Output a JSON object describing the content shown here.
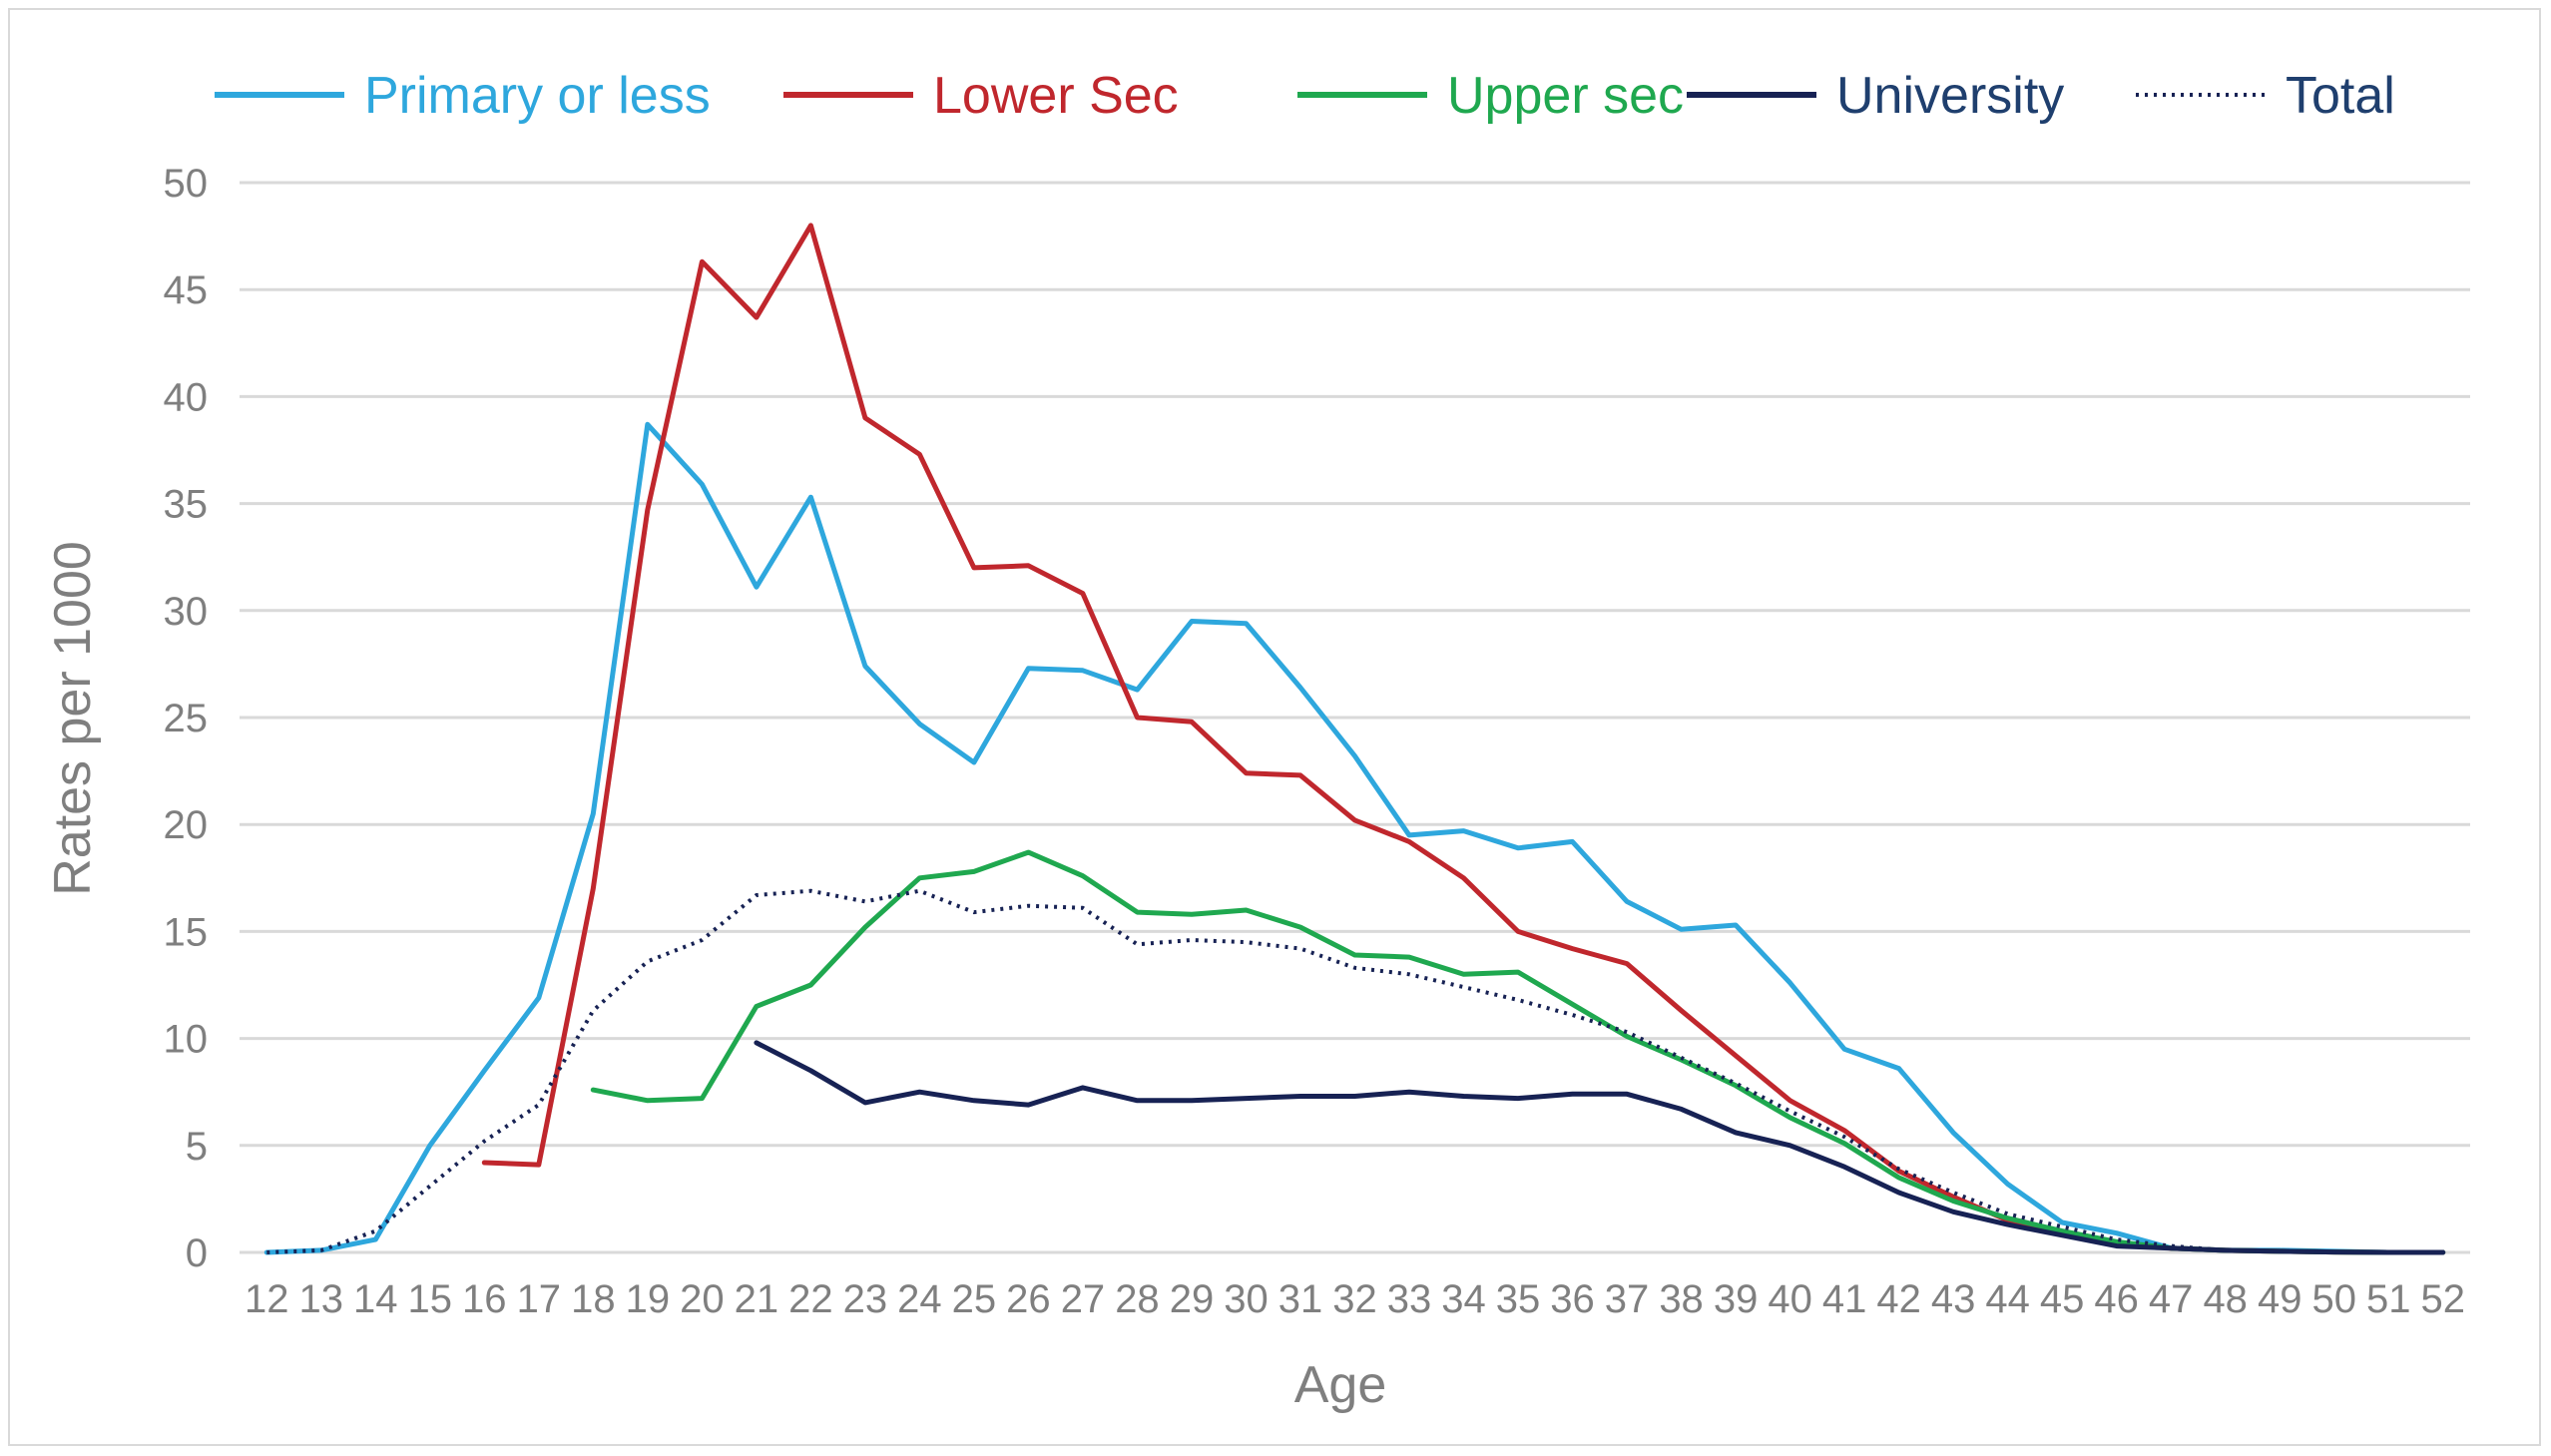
{
  "chart_data": {
    "type": "line",
    "title": "",
    "xlabel": "Age",
    "ylabel": "Rates per 1000",
    "ylim": [
      0,
      50
    ],
    "yticks": [
      0,
      5,
      10,
      15,
      20,
      25,
      30,
      35,
      40,
      45,
      50
    ],
    "grid": "horizontal",
    "legend_position": "top",
    "categories": [
      "12",
      "13",
      "14",
      "15",
      "16",
      "17",
      "18",
      "19",
      "20",
      "21",
      "22",
      "23",
      "24",
      "25",
      "26",
      "27",
      "28",
      "29",
      "30",
      "31",
      "32",
      "33",
      "34",
      "35",
      "36",
      "37",
      "38",
      "39",
      "40",
      "41",
      "42",
      "43",
      "44",
      "45",
      "46",
      "47",
      "48",
      "49",
      "50",
      "51",
      "52"
    ],
    "series": [
      {
        "name": "Primary or less",
        "color": "#2ea7dd",
        "dash": "solid",
        "values": [
          0.0,
          0.1,
          0.6,
          5.0,
          8.5,
          11.9,
          20.5,
          38.7,
          35.9,
          31.1,
          35.3,
          27.4,
          24.7,
          22.9,
          27.3,
          27.2,
          26.3,
          29.5,
          29.4,
          26.4,
          23.2,
          19.5,
          19.7,
          18.9,
          19.2,
          16.4,
          15.1,
          15.3,
          12.6,
          9.5,
          8.6,
          5.6,
          3.2,
          1.4,
          0.9,
          0.2,
          0.1,
          0.1,
          0.05,
          0.0,
          0.0
        ]
      },
      {
        "name": "Lower Sec",
        "color": "#c0272d",
        "dash": "solid",
        "values": [
          null,
          null,
          null,
          null,
          4.2,
          4.1,
          17.0,
          34.7,
          46.3,
          43.7,
          48.0,
          39.0,
          37.3,
          32.0,
          32.1,
          30.8,
          25.0,
          24.8,
          22.4,
          22.3,
          20.2,
          19.2,
          17.5,
          15.0,
          14.2,
          13.5,
          11.3,
          9.2,
          7.1,
          5.7,
          3.8,
          2.6,
          1.5,
          0.9,
          0.4,
          0.2,
          0.1,
          0.05,
          0.02,
          0.0,
          0.0
        ]
      },
      {
        "name": "Upper sec",
        "color": "#1fa84f",
        "dash": "solid",
        "values": [
          null,
          null,
          null,
          null,
          null,
          null,
          7.6,
          7.1,
          7.2,
          11.5,
          12.5,
          15.2,
          17.5,
          17.8,
          18.7,
          17.6,
          15.9,
          15.8,
          16.0,
          15.2,
          13.9,
          13.8,
          13.0,
          13.1,
          11.6,
          10.1,
          9.0,
          7.8,
          6.3,
          5.1,
          3.5,
          2.4,
          1.6,
          1.0,
          0.5,
          0.2,
          0.1,
          0.05,
          0.02,
          0.0,
          0.0
        ]
      },
      {
        "name": "University",
        "color": "#172254",
        "dash": "solid",
        "values": [
          null,
          null,
          null,
          null,
          null,
          null,
          null,
          null,
          null,
          9.8,
          8.5,
          7.0,
          7.5,
          7.1,
          6.9,
          7.7,
          7.1,
          7.1,
          7.2,
          7.3,
          7.3,
          7.5,
          7.3,
          7.2,
          7.4,
          7.4,
          6.7,
          5.6,
          5.0,
          4.0,
          2.8,
          1.9,
          1.3,
          0.8,
          0.3,
          0.2,
          0.1,
          0.05,
          0.02,
          0.0,
          0.0
        ]
      },
      {
        "name": "Total",
        "color": "#172254",
        "dash": "dotted",
        "values": [
          0.0,
          0.1,
          1.0,
          3.1,
          5.2,
          6.9,
          11.3,
          13.6,
          14.6,
          16.7,
          16.9,
          16.4,
          16.9,
          15.9,
          16.2,
          16.1,
          14.4,
          14.6,
          14.5,
          14.2,
          13.3,
          13.0,
          12.4,
          11.8,
          11.1,
          10.3,
          9.1,
          7.9,
          6.6,
          5.4,
          3.9,
          2.8,
          1.8,
          1.2,
          0.6,
          0.3,
          0.1,
          0.05,
          0.02,
          0.0,
          0.0
        ]
      }
    ]
  }
}
